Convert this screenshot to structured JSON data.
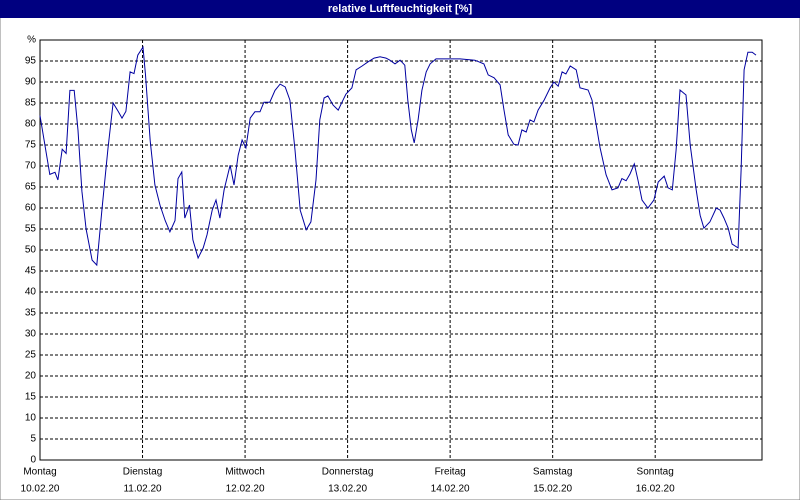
{
  "chart_data": {
    "type": "line",
    "title": "relative Luftfeuchtigkeit [%]",
    "x": [
      0,
      2.3,
      3.5,
      4.2,
      5.2,
      6.1,
      7.0,
      8.0,
      8.9,
      9.8,
      10.8,
      12.2,
      13.3,
      14.5,
      15.9,
      17.1,
      18.3,
      19.2,
      20.1,
      21.1,
      22.0,
      22.9,
      24.1,
      24.7,
      25.8,
      26.9,
      28.1,
      29.3,
      30.4,
      31.6,
      32.3,
      33.2,
      33.9,
      35.0,
      35.8,
      37.0,
      38.2,
      39.1,
      40.3,
      41.2,
      42.1,
      43.1,
      44.5,
      45.4,
      46.4,
      47.3,
      48.2,
      49.2,
      50.3,
      51.5,
      52.4,
      53.8,
      55.0,
      56.2,
      57.4,
      58.5,
      59.7,
      60.9,
      62.3,
      63.4,
      64.6,
      65.5,
      66.5,
      67.4,
      68.6,
      69.8,
      70.7,
      71.6,
      73.0,
      74.0,
      75.4,
      76.8,
      78.2,
      79.6,
      81.0,
      81.9,
      83.1,
      84.3,
      85.4,
      86.1,
      86.9,
      87.6,
      88.5,
      89.4,
      90.4,
      91.3,
      92.7,
      94.8,
      98.3,
      101.8,
      103.9,
      104.9,
      106.3,
      107.7,
      108.6,
      109.6,
      110.9,
      111.9,
      112.8,
      113.8,
      114.7,
      115.6,
      116.6,
      118.0,
      119.4,
      120.3,
      121.3,
      122.2,
      123.1,
      124.1,
      125.5,
      126.4,
      128.3,
      129.2,
      130.2,
      131.1,
      132.5,
      133.9,
      135.3,
      136.2,
      137.2,
      138.1,
      139.1,
      140.0,
      140.9,
      142.3,
      143.7,
      144.7,
      146.1,
      147.0,
      148.0,
      148.9,
      149.8,
      151.2,
      152.2,
      153.6,
      154.5,
      155.4,
      156.8,
      158.3,
      159.2,
      160.1,
      161.1,
      162.0,
      163.4,
      164.1,
      164.8,
      165.7,
      166.7,
      167.6
    ],
    "series": [
      {
        "color": "#0000a0",
        "values": [
          82,
          68,
          68.5,
          66.7,
          74,
          73,
          88,
          88,
          78.5,
          64,
          55,
          47.6,
          46.4,
          59.5,
          74,
          85,
          83,
          81.4,
          83,
          92.4,
          92,
          96.4,
          98.3,
          91.7,
          76,
          65.5,
          60.7,
          57,
          54.3,
          57,
          67,
          68.6,
          57.6,
          60.7,
          52.4,
          48.1,
          50.5,
          53.6,
          59.5,
          61.9,
          57.6,
          64.3,
          70.2,
          65.5,
          72.6,
          76.2,
          74.3,
          81.4,
          82.9,
          82.9,
          85.2,
          85.2,
          88,
          89.5,
          88.8,
          85.7,
          73.8,
          59.5,
          54.8,
          56.7,
          66.7,
          81,
          86.2,
          86.7,
          84.5,
          83.3,
          85.2,
          87.1,
          88.6,
          92.9,
          93.8,
          94.8,
          95.7,
          96,
          95.7,
          95.2,
          94.3,
          95.2,
          94,
          85.7,
          78.6,
          75.5,
          81,
          88,
          92.4,
          94.3,
          95.5,
          95.5,
          95.5,
          95.2,
          94.3,
          91.7,
          91,
          89.3,
          83.3,
          77.4,
          75.2,
          75,
          78.6,
          78.1,
          81,
          80.5,
          83.3,
          85.7,
          88.6,
          90,
          89,
          92.4,
          91.9,
          93.8,
          92.9,
          88.6,
          88.1,
          85.7,
          79.8,
          74.3,
          67.9,
          64.3,
          64.8,
          67,
          66.5,
          68.1,
          70.5,
          66.5,
          61.9,
          60,
          61.9,
          66.2,
          67.6,
          64.8,
          64.3,
          73.8,
          88.1,
          86.9,
          75,
          64.3,
          58.3,
          55.2,
          56.7,
          60,
          59.5,
          57.6,
          55.2,
          51.4,
          50.5,
          69,
          92.9,
          97.1,
          97.1,
          96.4
        ]
      }
    ],
    "xlim": [
      0,
      169
    ],
    "xticks": [
      {
        "value": 0,
        "label": "Montag",
        "date": "10.02.20"
      },
      {
        "value": 24,
        "label": "Dienstag",
        "date": "11.02.20"
      },
      {
        "value": 48,
        "label": "Mittwoch",
        "date": "12.02.20"
      },
      {
        "value": 72,
        "label": "Donnerstag",
        "date": "13.02.20"
      },
      {
        "value": 96,
        "label": "Freitag",
        "date": "14.02.20"
      },
      {
        "value": 120,
        "label": "Samstag",
        "date": "15.02.20"
      },
      {
        "value": 144,
        "label": "Sonntag",
        "date": "16.02.20"
      }
    ],
    "ylim": [
      0,
      100
    ],
    "yticks": [
      0,
      5,
      10,
      15,
      20,
      25,
      30,
      35,
      40,
      45,
      50,
      55,
      60,
      65,
      70,
      75,
      80,
      85,
      90,
      95,
      {
        "value": 100,
        "label": "%"
      }
    ],
    "grid": true
  }
}
